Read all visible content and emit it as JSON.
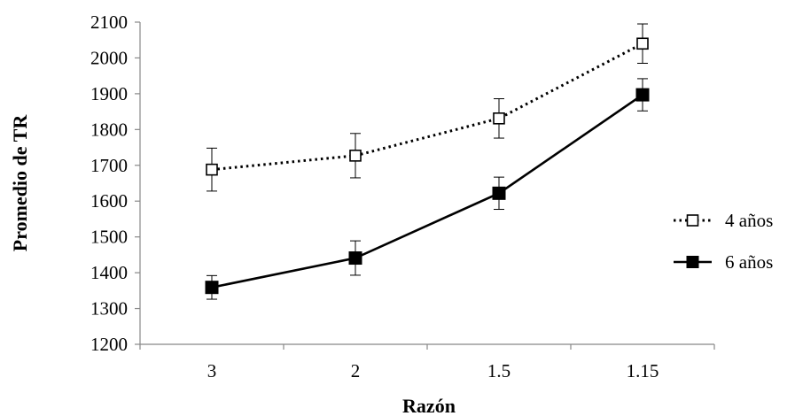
{
  "chart_data": {
    "type": "line",
    "categories": [
      "3",
      "2",
      "1.5",
      "1.15"
    ],
    "series": [
      {
        "name": "4 años",
        "values": [
          1688,
          1727,
          1831,
          2040
        ],
        "error": [
          60,
          62,
          55,
          55
        ],
        "line_style": "dotted",
        "marker": "open-square",
        "color": "#000000"
      },
      {
        "name": "6 años",
        "values": [
          1359,
          1441,
          1622,
          1897
        ],
        "error": [
          33,
          48,
          45,
          45
        ],
        "line_style": "solid",
        "marker": "filled-square",
        "color": "#000000"
      }
    ],
    "xlabel": "Razón",
    "ylabel": "Promedio de TR",
    "ylim": [
      1200,
      2100
    ],
    "yticks": [
      1200,
      1300,
      1400,
      1500,
      1600,
      1700,
      1800,
      1900,
      2000,
      2100
    ],
    "grid": false,
    "legend_position": "right"
  }
}
